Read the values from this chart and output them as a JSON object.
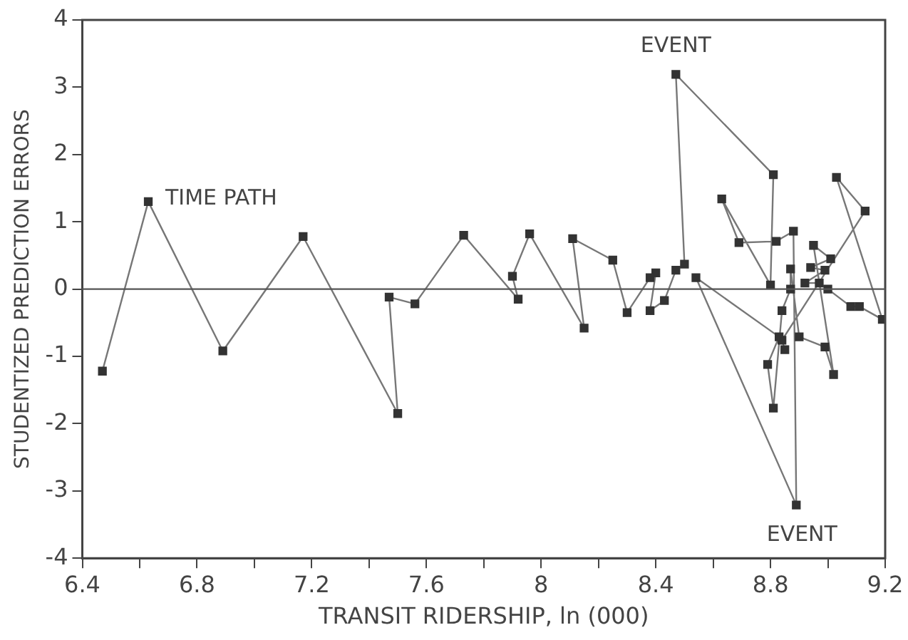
{
  "chart_data": {
    "type": "line",
    "xlabel": "TRANSIT RIDERSHIP, ln (000)",
    "ylabel": "STUDENTIZED PREDICTION ERRORS",
    "x": [
      6.47,
      6.63,
      6.89,
      7.17,
      7.5,
      7.47,
      7.56,
      7.73,
      7.92,
      7.9,
      7.96,
      8.15,
      8.11,
      8.25,
      8.3,
      8.38,
      8.4,
      8.38,
      8.43,
      8.47,
      8.5,
      8.47,
      8.81,
      8.8,
      8.63,
      8.69,
      8.82,
      8.88,
      8.89,
      8.54,
      8.83,
      8.79,
      8.81,
      8.84,
      8.87,
      8.87,
      8.9,
      8.99,
      9.02,
      8.95,
      9.01,
      8.94,
      8.99,
      8.92,
      8.97,
      9.0,
      9.08,
      9.11,
      9.19,
      9.03,
      9.13,
      8.84,
      8.85
    ],
    "series": [
      {
        "color": "#333333",
        "values": [
          -1.22,
          1.3,
          -0.92,
          0.78,
          -1.85,
          -0.12,
          -0.22,
          0.8,
          -0.15,
          0.19,
          0.82,
          -0.58,
          0.75,
          0.43,
          -0.35,
          0.17,
          0.24,
          -0.32,
          -0.17,
          0.28,
          0.37,
          3.19,
          1.7,
          0.06,
          1.34,
          0.69,
          0.71,
          0.86,
          -3.21,
          0.17,
          -0.71,
          -1.12,
          -1.77,
          -0.32,
          0.0,
          0.3,
          -0.71,
          -0.86,
          -1.27,
          0.65,
          0.45,
          0.32,
          0.28,
          0.09,
          0.09,
          0.0,
          -0.26,
          -0.26,
          -0.45,
          1.66,
          1.16,
          -0.76,
          -0.9
        ]
      }
    ],
    "xlim": [
      6.4,
      9.2
    ],
    "xticks": [
      6.4,
      {
        "value": 6.6,
        "label": null
      },
      6.8,
      {
        "value": 7.0,
        "label": null
      },
      7.2,
      {
        "value": 7.4,
        "label": null
      },
      7.6,
      {
        "value": 7.8,
        "label": null
      },
      8,
      {
        "value": 8.2,
        "label": null
      },
      8.4,
      {
        "value": 8.6,
        "label": null
      },
      8.8,
      {
        "value": 9.0,
        "label": null
      },
      9.2
    ],
    "ylim": [
      -4,
      4
    ],
    "yticks": [
      -4,
      -3,
      -2,
      -1,
      0,
      1,
      2,
      3,
      4
    ],
    "ref_lines": [
      {
        "axis": "y",
        "value": 0,
        "color": "#555555"
      }
    ],
    "annotations": [
      {
        "text": "TIME PATH",
        "x": 6.63,
        "y": 1.3
      },
      {
        "text": "EVENT",
        "x": 8.47,
        "y": 3.19
      },
      {
        "text": "EVENT",
        "x": 8.89,
        "y": -3.21
      }
    ],
    "marker": "square",
    "line_style": "solid",
    "grid": false,
    "legend": false
  }
}
